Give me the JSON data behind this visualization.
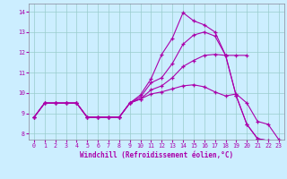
{
  "xlabel": "Windchill (Refroidissement éolien,°C)",
  "background_color": "#cceeff",
  "line_color": "#aa00aa",
  "grid_color": "#99cccc",
  "xlim": [
    -0.5,
    23.5
  ],
  "ylim": [
    7.7,
    14.4
  ],
  "xticks": [
    0,
    1,
    2,
    3,
    4,
    5,
    6,
    7,
    8,
    9,
    10,
    11,
    12,
    13,
    14,
    15,
    16,
    17,
    18,
    19,
    20,
    21,
    22,
    23
  ],
  "yticks": [
    8,
    9,
    10,
    11,
    12,
    13,
    14
  ],
  "lines": [
    {
      "x": [
        0,
        1,
        2,
        3,
        4,
        5,
        6,
        7,
        8,
        9,
        10,
        11,
        12,
        13,
        14,
        15,
        16,
        17,
        18,
        19,
        20,
        21,
        22
      ],
      "y": [
        8.8,
        9.5,
        9.5,
        9.5,
        9.5,
        8.8,
        8.8,
        8.8,
        8.8,
        9.5,
        9.9,
        10.7,
        11.9,
        12.7,
        13.95,
        13.55,
        13.35,
        13.0,
        11.85,
        9.85,
        8.45,
        7.75,
        7.65
      ]
    },
    {
      "x": [
        0,
        1,
        2,
        3,
        4,
        5,
        6,
        7,
        8,
        9,
        10,
        11,
        12,
        13,
        14,
        15,
        16,
        17,
        18,
        19,
        20,
        21,
        22
      ],
      "y": [
        8.8,
        9.5,
        9.5,
        9.5,
        9.5,
        8.8,
        8.8,
        8.8,
        8.8,
        9.5,
        9.8,
        10.5,
        10.75,
        11.45,
        12.4,
        12.85,
        13.0,
        12.8,
        11.85,
        9.85,
        8.45,
        7.75,
        7.65
      ]
    },
    {
      "x": [
        0,
        1,
        2,
        3,
        4,
        5,
        6,
        7,
        8,
        9,
        10,
        11,
        12,
        13,
        14,
        15,
        16,
        17,
        18,
        19,
        20
      ],
      "y": [
        8.8,
        9.5,
        9.5,
        9.5,
        9.5,
        8.8,
        8.8,
        8.8,
        8.8,
        9.5,
        9.7,
        10.15,
        10.35,
        10.75,
        11.3,
        11.6,
        11.85,
        11.9,
        11.85,
        11.85,
        11.85
      ]
    },
    {
      "x": [
        0,
        1,
        2,
        3,
        4,
        5,
        6,
        7,
        8,
        9,
        10,
        11,
        12,
        13,
        14,
        15,
        16,
        17,
        18,
        19,
        20,
        21,
        22,
        23
      ],
      "y": [
        8.8,
        9.5,
        9.5,
        9.5,
        9.5,
        8.8,
        8.8,
        8.8,
        8.8,
        9.5,
        9.7,
        9.95,
        10.05,
        10.2,
        10.35,
        10.4,
        10.3,
        10.05,
        9.85,
        9.95,
        9.5,
        8.6,
        8.45,
        7.7
      ]
    }
  ]
}
